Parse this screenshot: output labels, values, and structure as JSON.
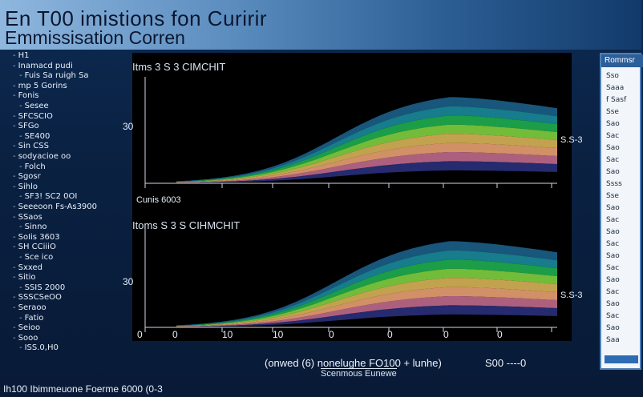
{
  "title": {
    "line1": "En T00 imistions fon Curirir",
    "line2": "Emmissisation Corren"
  },
  "left_list": [
    "H1",
    "Inamacd pudi",
    "Fuis Sa ruigh Sa",
    "mp 5 Gorins",
    "Fonis",
    "Sesee",
    "SFCSCIO",
    "SFGo",
    "SE400",
    "Sin CSS",
    "sodyacioe oo",
    "Folch",
    "Sgosr",
    "Sihlo",
    "SF3! SC2 0OI",
    "Seeeoon Fs-As3900",
    "SSaos",
    "Sinno",
    "SoIis 3603",
    "SH CCiiiO",
    "Sce ico",
    "Sxxed",
    "Sitio",
    "SSIS 2000",
    "SSSCSeOO",
    "Seraoo",
    "Fatio",
    "Seioo",
    "Sooo",
    "ISS.0,H0"
  ],
  "right_panel": {
    "header": "Rommsr",
    "items": [
      "Sso",
      "Saaa",
      "f Sasf",
      "Sse",
      "Sao",
      "Sac",
      "Sao",
      "Sac",
      "Sao",
      "Ssss",
      "Sse",
      "Sao",
      "Sac",
      "Sao",
      "Sac",
      "Sao",
      "Sac",
      "Sao",
      "Sac",
      "Sao",
      "Sac",
      "Sao",
      "Saa"
    ]
  },
  "chart_data": [
    {
      "type": "area",
      "title": "Itms 3 S 3 CIMCHIT",
      "ylabel_tick": "30",
      "corner_label": "Cunis 6003",
      "right_label": "S.S-3",
      "series_count": 8,
      "colors": [
        "#2a2f7a",
        "#c06a8c",
        "#e8a070",
        "#d8b458",
        "#7fd040",
        "#1fae4f",
        "#1a8a9a",
        "#1b5f8a"
      ]
    },
    {
      "type": "area",
      "title": "Itoms S 3 S CIHMCHIT",
      "ylabel_tick": "30",
      "right_label": "S.S-3",
      "series_count": 8,
      "colors": [
        "#2a2f7a",
        "#c06a8c",
        "#e8a070",
        "#d8b458",
        "#7fd040",
        "#1fae4f",
        "#1a8a9a",
        "#1b5f8a"
      ]
    }
  ],
  "x_ticks": [
    "0",
    "0",
    "10",
    "10",
    "0",
    "0",
    "0",
    "0"
  ],
  "x_caption": "(onwed (6) nonelughe FO100 + lunhe)",
  "x_caption_2": "Scenmous Eunewe",
  "x_caption_right": "S00 ----0",
  "footer": "Ih100 Ibimmeuone Foerme 6000 (0-3"
}
